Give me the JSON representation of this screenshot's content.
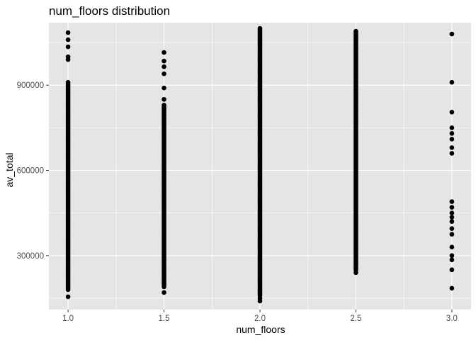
{
  "chart_data": {
    "type": "scatter",
    "title": "num_floors  distribution",
    "xlabel": "num_floors",
    "ylabel": "av_total",
    "x_ticks": [
      1.0,
      1.5,
      2.0,
      2.5,
      3.0
    ],
    "x_tick_labels": [
      "1.0",
      "1.5",
      "2.0",
      "2.5",
      "3.0"
    ],
    "y_ticks": [
      300000,
      600000,
      900000
    ],
    "y_tick_labels": [
      "300000",
      "600000",
      "900000"
    ],
    "xlim": [
      0.9,
      3.1
    ],
    "ylim": [
      110000,
      1120000
    ],
    "grid": true,
    "point_color": "#000000",
    "panel_background": "#e5e5e5",
    "grid_color": "#ffffff",
    "groups": [
      {
        "x": 1.0,
        "dense_range": [
          180000,
          910000
        ],
        "outliers": [
          155000,
          990000,
          1000000,
          1035000,
          1060000,
          1085000
        ]
      },
      {
        "x": 1.5,
        "dense_range": [
          190000,
          830000
        ],
        "outliers": [
          170000,
          850000,
          890000,
          940000,
          965000,
          985000,
          1015000
        ]
      },
      {
        "x": 2.0,
        "dense_range": [
          160000,
          1100000
        ],
        "outliers": [
          140000,
          150000
        ]
      },
      {
        "x": 2.5,
        "dense_range": [
          250000,
          1090000
        ],
        "outliers": [
          240000
        ]
      },
      {
        "x": 3.0,
        "dense_range": null,
        "outliers": [
          185000,
          250000,
          285000,
          300000,
          330000,
          375000,
          395000,
          420000,
          435000,
          450000,
          470000,
          490000,
          660000,
          680000,
          710000,
          730000,
          750000,
          805000,
          910000,
          1080000
        ]
      }
    ]
  }
}
